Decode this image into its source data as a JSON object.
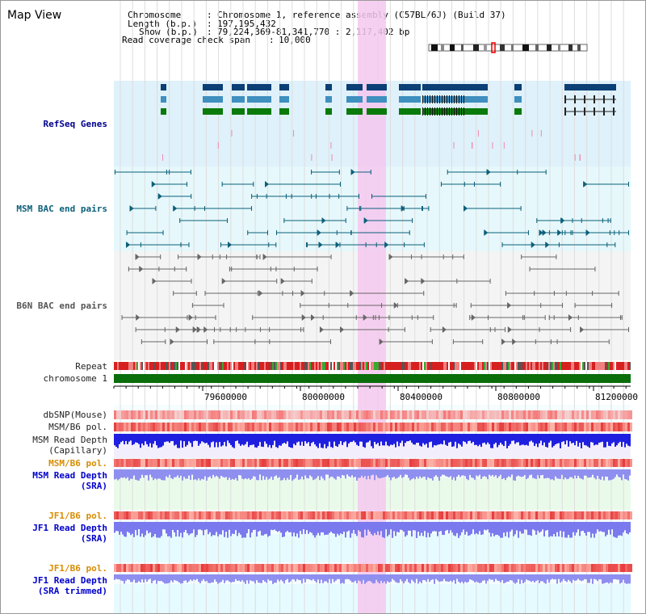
{
  "view": {
    "title": "Map View"
  },
  "header": {
    "chromosome_label": "Chromosome",
    "chromosome_value": "Chromosome 1, reference assembly (C57BL/6J) (Build 37)",
    "length_label": "Length (b.p.)",
    "length_value": "197,195,432",
    "show_label": "Show (b.p.)",
    "show_value": "79,224,369-81,341,770 : 2,117,402 bp",
    "coverage_label": "Read coverage check span",
    "coverage_value": "10,000"
  },
  "tracks": {
    "refseq": "RefSeq Genes",
    "msm_bac": "MSM BAC end pairs",
    "b6n_bac": "B6N BAC end pairs",
    "repeat": "Repeat",
    "chromosome": "chromosome 1",
    "dbsnp": "dbSNP(Mouse)",
    "msm_b6_pol": "MSM/B6 pol.",
    "msm_depth_cap_1": "MSM Read Depth",
    "msm_depth_cap_2": "(Capillary)",
    "msm_b6_pol_sra": "MSM/B6 pol.",
    "msm_depth_sra_1": "MSM Read Depth",
    "msm_depth_sra_2": "(SRA)",
    "jf1_b6_pol": "JF1/B6 pol.",
    "jf1_depth_sra_1": "JF1 Read Depth",
    "jf1_depth_sra_2": "(SRA)",
    "jf1_b6_pol_trim": "JF1/B6 pol.",
    "jf1_depth_trim_1": "JF1 Read Depth",
    "jf1_depth_trim_2": "(SRA trimmed)"
  },
  "axis": {
    "ticks": [
      "79600000",
      "80000000",
      "80400000",
      "80800000",
      "81200000"
    ]
  },
  "colors": {
    "refseq_label": "#00008b",
    "msm_label": "#0b5f7a",
    "b6n_label": "#555555",
    "orange_label": "#d98c00",
    "blue_label": "#0000cc",
    "refseq_bg": "#dff1fa",
    "msm_bg": "#e6f8fb",
    "highlight": "#f5c8ee",
    "gene_dark": "#0b3f75",
    "gene_mid": "#3f8fbf",
    "gene_green": "#0a7a0a",
    "chrom_green": "#0a6e0a"
  }
}
